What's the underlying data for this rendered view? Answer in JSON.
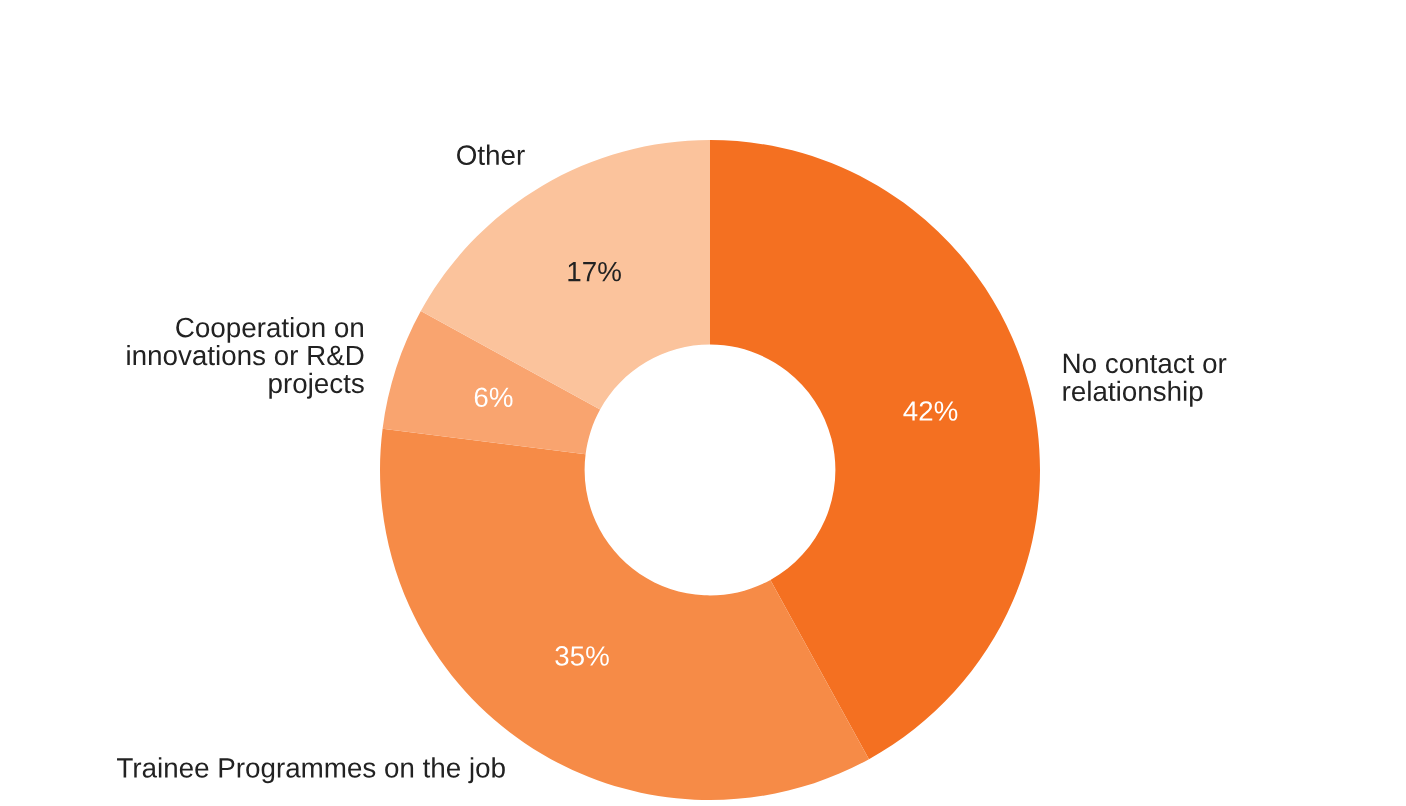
{
  "chart_data": {
    "type": "donut",
    "categories": [
      "No contact or\nrelationship",
      "Trainee Programmes on the job",
      "Cooperation on\ninnovations or R&D\nprojects",
      "Other"
    ],
    "values": [
      42,
      35,
      6,
      17
    ],
    "colors": [
      "#f47021",
      "#f68b47",
      "#f9a46f",
      "#fbc39c"
    ],
    "value_labels": [
      "42%",
      "35%",
      "6%",
      "17%"
    ],
    "legend": false
  }
}
